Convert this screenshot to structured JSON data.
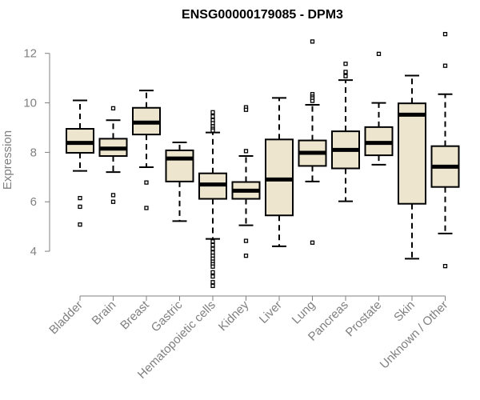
{
  "chart_data": {
    "type": "boxplot",
    "title": "ENSG00000179085 - DPM3",
    "ylabel": "Expression",
    "xlabel": "",
    "ylim": [
      3.0,
      12.8
    ],
    "yticks": [
      4,
      6,
      8,
      10,
      12
    ],
    "box_color": "#ede5cd",
    "categories": [
      "Bladder",
      "Brain",
      "Breast",
      "Gastric",
      "Hematopoietic cells",
      "Kidney",
      "Liver",
      "Lung",
      "Pancreas",
      "Prostate",
      "Skin",
      "Unknown / Other"
    ],
    "boxes": [
      {
        "q1": 7.98,
        "median": 8.38,
        "q3": 8.95,
        "whisker_low": 7.25,
        "whisker_high": 10.1,
        "outliers": [
          6.15,
          5.8,
          5.08
        ]
      },
      {
        "q1": 7.85,
        "median": 8.15,
        "q3": 8.55,
        "whisker_low": 7.2,
        "whisker_high": 9.3,
        "outliers": [
          9.78,
          6.27,
          6.0
        ]
      },
      {
        "q1": 8.72,
        "median": 9.2,
        "q3": 9.8,
        "whisker_low": 7.4,
        "whisker_high": 10.5,
        "outliers": [
          6.78,
          5.75
        ]
      },
      {
        "q1": 6.82,
        "median": 7.75,
        "q3": 8.08,
        "whisker_low": 5.22,
        "whisker_high": 8.4,
        "outliers": []
      },
      {
        "q1": 6.12,
        "median": 6.7,
        "q3": 7.15,
        "whisker_low": 4.5,
        "whisker_high": 8.8,
        "outliers": [
          9.62,
          9.45,
          9.3,
          9.18,
          9.05,
          8.95,
          8.88,
          4.4,
          4.25,
          4.1,
          3.95,
          3.82,
          3.7,
          3.58,
          3.48,
          3.38,
          3.15,
          2.98,
          2.75,
          2.6
        ]
      },
      {
        "q1": 6.12,
        "median": 6.45,
        "q3": 6.8,
        "whisker_low": 5.05,
        "whisker_high": 7.85,
        "outliers": [
          9.82,
          9.72,
          8.05,
          4.42,
          3.82
        ]
      },
      {
        "q1": 5.45,
        "median": 6.9,
        "q3": 8.52,
        "whisker_low": 4.2,
        "whisker_high": 10.2,
        "outliers": []
      },
      {
        "q1": 7.45,
        "median": 7.98,
        "q3": 8.48,
        "whisker_low": 6.82,
        "whisker_high": 9.92,
        "outliers": [
          12.48,
          10.35,
          10.25,
          10.18,
          10.08,
          4.35
        ]
      },
      {
        "q1": 7.35,
        "median": 8.1,
        "q3": 8.85,
        "whisker_low": 6.02,
        "whisker_high": 10.92,
        "outliers": [
          11.58,
          11.25,
          11.08
        ]
      },
      {
        "q1": 7.88,
        "median": 8.38,
        "q3": 9.02,
        "whisker_low": 7.5,
        "whisker_high": 10.0,
        "outliers": [
          11.98
        ]
      },
      {
        "q1": 5.92,
        "median": 9.52,
        "q3": 9.98,
        "whisker_low": 3.7,
        "whisker_high": 11.1,
        "outliers": []
      },
      {
        "q1": 6.6,
        "median": 7.42,
        "q3": 8.25,
        "whisker_low": 4.72,
        "whisker_high": 10.35,
        "outliers": [
          12.78,
          11.5,
          3.4
        ]
      }
    ]
  }
}
